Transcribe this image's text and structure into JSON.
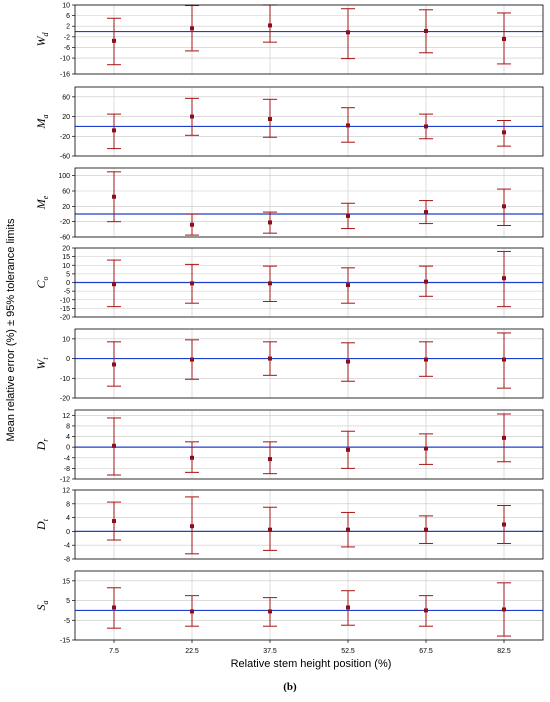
{
  "figure": {
    "xlabel": "Relative stem height position (%)",
    "ylabel": "Mean relative error (%) ± 95% tolerance limits",
    "caption": "(b)"
  },
  "colors": {
    "errorbar": "#a31515",
    "marker": "#8b0e1e",
    "reference_line": "#1f3fd1",
    "grid": "#c8c8c8",
    "frame": "#000000"
  },
  "chart_data": {
    "type": "scatter",
    "x": [
      7.5,
      22.5,
      37.5,
      52.5,
      67.5,
      82.5
    ],
    "x_tick_labels": [
      "7.5",
      "22.5",
      "37.5",
      "52.5",
      "67.5",
      "82.5"
    ],
    "xlabel": "Relative stem height position (%)",
    "ylabel": "Mean relative error (%) ± 95% tolerance limits",
    "grid": true,
    "reference_line_y": 0,
    "panels": [
      {
        "label": "W",
        "subscript": "d",
        "ylim": [
          -16,
          10
        ],
        "yticks": [
          -16,
          -10,
          -6,
          -2,
          2,
          6,
          10
        ],
        "ytick_labels": [
          "-16",
          "-10",
          "-6",
          "-2",
          "2",
          "6",
          "10"
        ],
        "mean": [
          -3.5,
          1.2,
          2.3,
          -0.3,
          0.2,
          -2.8
        ],
        "lower": [
          -12.5,
          -7.3,
          -4.0,
          -10.2,
          -8.0,
          -12.2
        ],
        "upper": [
          5.0,
          9.8,
          10.0,
          8.6,
          8.2,
          7.0
        ]
      },
      {
        "label": "M",
        "subscript": "a",
        "ylim": [
          -60,
          80
        ],
        "yticks": [
          -60,
          -20,
          20,
          60
        ],
        "ytick_labels": [
          "-60",
          "-20",
          "20",
          "60"
        ],
        "mean": [
          -8,
          20,
          15,
          2,
          0,
          -12
        ],
        "lower": [
          -45,
          -18,
          -22,
          -32,
          -25,
          -40
        ],
        "upper": [
          25,
          57,
          55,
          38,
          25,
          12
        ]
      },
      {
        "label": "M",
        "subscript": "e",
        "ylim": [
          -60,
          120
        ],
        "yticks": [
          -60,
          -20,
          20,
          60,
          100
        ],
        "ytick_labels": [
          "-60",
          "-20",
          "20",
          "60",
          "100"
        ],
        "mean": [
          45,
          -28,
          -22,
          -5,
          5,
          20
        ],
        "lower": [
          -20,
          -55,
          -50,
          -38,
          -25,
          -30
        ],
        "upper": [
          110,
          0,
          5,
          28,
          35,
          65
        ]
      },
      {
        "label": "C",
        "subscript": "o",
        "ylim": [
          -20,
          20
        ],
        "yticks": [
          -20,
          -15,
          -10,
          -5,
          0,
          5,
          10,
          15,
          20
        ],
        "ytick_labels": [
          "-20",
          "-15",
          "-10",
          "-5",
          "0",
          "5",
          "10",
          "15",
          "20"
        ],
        "mean": [
          -1.0,
          -0.5,
          -0.5,
          -1.5,
          0.5,
          2.5
        ],
        "lower": [
          -14,
          -12,
          -11,
          -12,
          -8,
          -14
        ],
        "upper": [
          13,
          10.5,
          9.5,
          8.5,
          9.5,
          18
        ]
      },
      {
        "label": "W",
        "subscript": "t",
        "ylim": [
          -20,
          15
        ],
        "yticks": [
          -20,
          -10,
          0,
          10
        ],
        "ytick_labels": [
          "-20",
          "-10",
          "0",
          "10"
        ],
        "mean": [
          -3.0,
          -0.5,
          0.0,
          -1.5,
          -0.5,
          -0.5
        ],
        "lower": [
          -14,
          -10.5,
          -8.5,
          -11.5,
          -9.0,
          -15.0
        ],
        "upper": [
          8.5,
          9.5,
          8.5,
          8.0,
          8.5,
          13.0
        ]
      },
      {
        "label": "D",
        "subscript": "r",
        "ylim": [
          -12,
          14
        ],
        "yticks": [
          -12,
          -8,
          -4,
          0,
          4,
          8,
          12
        ],
        "ytick_labels": [
          "-12",
          "-8",
          "-4",
          "0",
          "4",
          "8",
          "12"
        ],
        "mean": [
          0.5,
          -4.0,
          -4.5,
          -1.0,
          -0.5,
          3.5
        ],
        "lower": [
          -10.5,
          -9.5,
          -10.0,
          -8.0,
          -6.5,
          -5.5
        ],
        "upper": [
          11.0,
          2.0,
          2.0,
          6.0,
          5.0,
          12.5
        ]
      },
      {
        "label": "D",
        "subscript": "t",
        "ylim": [
          -8,
          12
        ],
        "yticks": [
          -8,
          -4,
          0,
          4,
          8,
          12
        ],
        "ytick_labels": [
          "-8",
          "-4",
          "0",
          "4",
          "8",
          "12"
        ],
        "mean": [
          3.0,
          1.5,
          0.5,
          0.5,
          0.5,
          2.0
        ],
        "lower": [
          -2.5,
          -6.5,
          -5.5,
          -4.5,
          -3.5,
          -3.5
        ],
        "upper": [
          8.5,
          10.0,
          7.0,
          5.5,
          4.5,
          7.5
        ]
      },
      {
        "label": "S",
        "subscript": "a",
        "ylim": [
          -15,
          20
        ],
        "yticks": [
          -15,
          -5,
          5,
          15
        ],
        "ytick_labels": [
          "-15",
          "-5",
          "5",
          "15"
        ],
        "mean": [
          1.5,
          -0.5,
          -0.5,
          1.5,
          0.0,
          0.5
        ],
        "lower": [
          -9.0,
          -8.0,
          -8.0,
          -7.5,
          -8.0,
          -13.0
        ],
        "upper": [
          11.5,
          7.5,
          6.5,
          10.0,
          7.5,
          14.0
        ]
      }
    ]
  }
}
